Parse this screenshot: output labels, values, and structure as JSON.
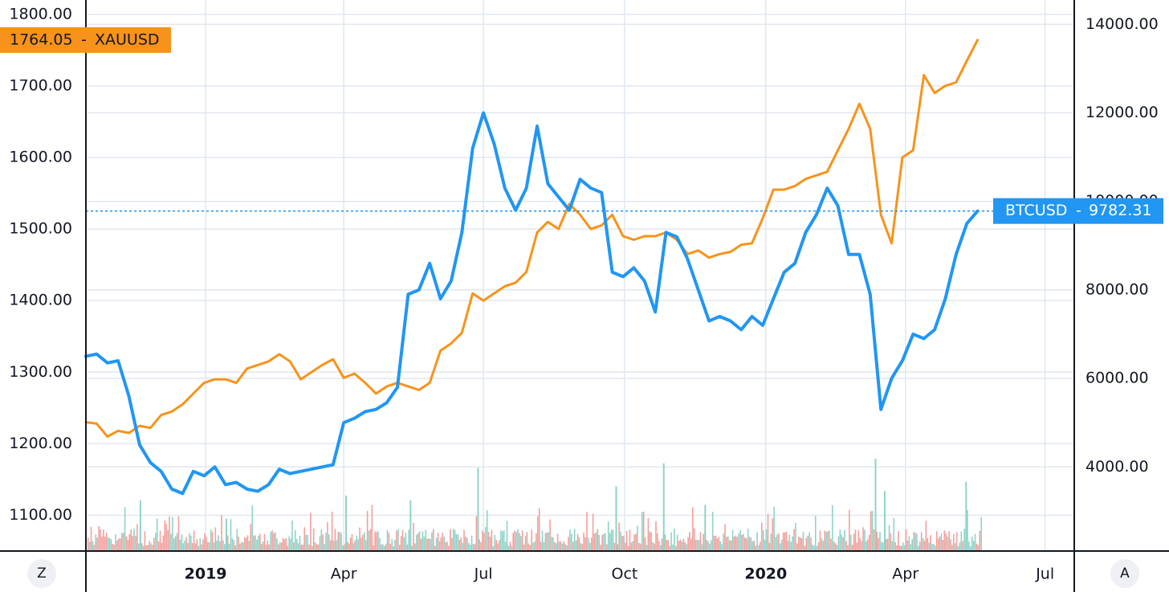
{
  "controls": {
    "left_button": "Z",
    "right_button": "A"
  },
  "colors": {
    "gold": "#f7931a",
    "btc": "#2196f3",
    "vol_up": "#8fd3c8",
    "vol_down": "#f3a09c",
    "grid": "#e1e7ef"
  },
  "chart_data": {
    "type": "line",
    "x_ticks": [
      {
        "label": "2019",
        "date": "2019-01-01",
        "bold": true
      },
      {
        "label": "Apr",
        "date": "2019-04-01",
        "bold": false
      },
      {
        "label": "Jul",
        "date": "2019-07-01",
        "bold": false
      },
      {
        "label": "Oct",
        "date": "2019-10-01",
        "bold": false
      },
      {
        "label": "2020",
        "date": "2020-01-01",
        "bold": true
      },
      {
        "label": "Apr",
        "date": "2020-04-01",
        "bold": false
      },
      {
        "label": "Jul",
        "date": "2020-07-01",
        "bold": false
      }
    ],
    "x_range": [
      "2018-10-15",
      "2020-07-20"
    ],
    "left_axis": {
      "range": [
        1050,
        1820
      ],
      "ticks": [
        "1100.00",
        "1200.00",
        "1300.00",
        "1400.00",
        "1500.00",
        "1600.00",
        "1700.00",
        "1800.00"
      ]
    },
    "right_axis": {
      "range": [
        2100,
        14550
      ],
      "ticks": [
        "4000.00",
        "6000.00",
        "8000.00",
        "10000.00",
        "12000.00",
        "14000.00"
      ]
    },
    "series": [
      {
        "name": "XAUUSD",
        "axis": "left",
        "color": "#f7931a",
        "last_label": "1764.05",
        "points": [
          [
            "2018-10-15",
            1230
          ],
          [
            "2018-10-22",
            1228
          ],
          [
            "2018-10-29",
            1210
          ],
          [
            "2018-11-05",
            1218
          ],
          [
            "2018-11-12",
            1215
          ],
          [
            "2018-11-19",
            1225
          ],
          [
            "2018-11-26",
            1222
          ],
          [
            "2018-12-03",
            1240
          ],
          [
            "2018-12-10",
            1245
          ],
          [
            "2018-12-17",
            1255
          ],
          [
            "2018-12-24",
            1270
          ],
          [
            "2018-12-31",
            1285
          ],
          [
            "2019-01-07",
            1290
          ],
          [
            "2019-01-14",
            1290
          ],
          [
            "2019-01-21",
            1285
          ],
          [
            "2019-01-28",
            1305
          ],
          [
            "2019-02-04",
            1310
          ],
          [
            "2019-02-11",
            1315
          ],
          [
            "2019-02-18",
            1325
          ],
          [
            "2019-02-25",
            1315
          ],
          [
            "2019-03-04",
            1290
          ],
          [
            "2019-03-11",
            1300
          ],
          [
            "2019-03-18",
            1310
          ],
          [
            "2019-03-25",
            1318
          ],
          [
            "2019-04-01",
            1292
          ],
          [
            "2019-04-08",
            1298
          ],
          [
            "2019-04-15",
            1285
          ],
          [
            "2019-04-22",
            1270
          ],
          [
            "2019-04-29",
            1280
          ],
          [
            "2019-05-06",
            1285
          ],
          [
            "2019-05-13",
            1280
          ],
          [
            "2019-05-20",
            1275
          ],
          [
            "2019-05-27",
            1285
          ],
          [
            "2019-06-03",
            1330
          ],
          [
            "2019-06-10",
            1340
          ],
          [
            "2019-06-17",
            1355
          ],
          [
            "2019-06-24",
            1410
          ],
          [
            "2019-07-01",
            1400
          ],
          [
            "2019-07-08",
            1410
          ],
          [
            "2019-07-15",
            1420
          ],
          [
            "2019-07-22",
            1425
          ],
          [
            "2019-07-29",
            1440
          ],
          [
            "2019-08-05",
            1495
          ],
          [
            "2019-08-12",
            1510
          ],
          [
            "2019-08-19",
            1500
          ],
          [
            "2019-08-26",
            1535
          ],
          [
            "2019-09-02",
            1520
          ],
          [
            "2019-09-09",
            1500
          ],
          [
            "2019-09-16",
            1505
          ],
          [
            "2019-09-23",
            1520
          ],
          [
            "2019-09-30",
            1490
          ],
          [
            "2019-10-07",
            1485
          ],
          [
            "2019-10-14",
            1490
          ],
          [
            "2019-10-21",
            1490
          ],
          [
            "2019-10-28",
            1495
          ],
          [
            "2019-11-04",
            1485
          ],
          [
            "2019-11-11",
            1465
          ],
          [
            "2019-11-18",
            1470
          ],
          [
            "2019-11-25",
            1460
          ],
          [
            "2019-12-02",
            1465
          ],
          [
            "2019-12-09",
            1468
          ],
          [
            "2019-12-16",
            1478
          ],
          [
            "2019-12-23",
            1480
          ],
          [
            "2019-12-30",
            1515
          ],
          [
            "2020-01-06",
            1555
          ],
          [
            "2020-01-13",
            1555
          ],
          [
            "2020-01-20",
            1560
          ],
          [
            "2020-01-27",
            1570
          ],
          [
            "2020-02-03",
            1575
          ],
          [
            "2020-02-10",
            1580
          ],
          [
            "2020-02-17",
            1610
          ],
          [
            "2020-02-24",
            1640
          ],
          [
            "2020-03-02",
            1675
          ],
          [
            "2020-03-09",
            1640
          ],
          [
            "2020-03-16",
            1520
          ],
          [
            "2020-03-23",
            1480
          ],
          [
            "2020-03-30",
            1600
          ],
          [
            "2020-04-06",
            1610
          ],
          [
            "2020-04-13",
            1715
          ],
          [
            "2020-04-20",
            1690
          ],
          [
            "2020-04-27",
            1700
          ],
          [
            "2020-05-04",
            1705
          ],
          [
            "2020-05-11",
            1735
          ],
          [
            "2020-05-18",
            1764.05
          ]
        ]
      },
      {
        "name": "BTCUSD",
        "axis": "right",
        "color": "#2196f3",
        "last_label": "9782.31",
        "points": [
          [
            "2018-10-15",
            6500
          ],
          [
            "2018-10-22",
            6550
          ],
          [
            "2018-10-29",
            6350
          ],
          [
            "2018-11-05",
            6400
          ],
          [
            "2018-11-12",
            5600
          ],
          [
            "2018-11-19",
            4500
          ],
          [
            "2018-11-26",
            4100
          ],
          [
            "2018-12-03",
            3900
          ],
          [
            "2018-12-10",
            3500
          ],
          [
            "2018-12-17",
            3400
          ],
          [
            "2018-12-24",
            3900
          ],
          [
            "2018-12-31",
            3800
          ],
          [
            "2019-01-07",
            4000
          ],
          [
            "2019-01-14",
            3600
          ],
          [
            "2019-01-21",
            3650
          ],
          [
            "2019-01-28",
            3500
          ],
          [
            "2019-02-04",
            3450
          ],
          [
            "2019-02-11",
            3600
          ],
          [
            "2019-02-18",
            3950
          ],
          [
            "2019-02-25",
            3850
          ],
          [
            "2019-03-04",
            3900
          ],
          [
            "2019-03-11",
            3950
          ],
          [
            "2019-03-18",
            4000
          ],
          [
            "2019-03-25",
            4050
          ],
          [
            "2019-04-01",
            5000
          ],
          [
            "2019-04-08",
            5100
          ],
          [
            "2019-04-15",
            5250
          ],
          [
            "2019-04-22",
            5300
          ],
          [
            "2019-04-29",
            5450
          ],
          [
            "2019-05-06",
            5800
          ],
          [
            "2019-05-13",
            7900
          ],
          [
            "2019-05-20",
            8000
          ],
          [
            "2019-05-27",
            8600
          ],
          [
            "2019-06-03",
            7800
          ],
          [
            "2019-06-10",
            8200
          ],
          [
            "2019-06-17",
            9300
          ],
          [
            "2019-06-24",
            11200
          ],
          [
            "2019-07-01",
            12000
          ],
          [
            "2019-07-08",
            11300
          ],
          [
            "2019-07-15",
            10300
          ],
          [
            "2019-07-22",
            9800
          ],
          [
            "2019-07-29",
            10300
          ],
          [
            "2019-08-05",
            11700
          ],
          [
            "2019-08-12",
            10400
          ],
          [
            "2019-08-19",
            10100
          ],
          [
            "2019-08-26",
            9800
          ],
          [
            "2019-09-02",
            10500
          ],
          [
            "2019-09-09",
            10300
          ],
          [
            "2019-09-16",
            10200
          ],
          [
            "2019-09-23",
            8400
          ],
          [
            "2019-09-30",
            8300
          ],
          [
            "2019-10-07",
            8500
          ],
          [
            "2019-10-14",
            8200
          ],
          [
            "2019-10-21",
            7500
          ],
          [
            "2019-10-28",
            9300
          ],
          [
            "2019-11-04",
            9200
          ],
          [
            "2019-11-11",
            8700
          ],
          [
            "2019-11-18",
            8000
          ],
          [
            "2019-11-25",
            7300
          ],
          [
            "2019-12-02",
            7400
          ],
          [
            "2019-12-09",
            7300
          ],
          [
            "2019-12-16",
            7100
          ],
          [
            "2019-12-23",
            7400
          ],
          [
            "2019-12-30",
            7200
          ],
          [
            "2020-01-06",
            7800
          ],
          [
            "2020-01-13",
            8400
          ],
          [
            "2020-01-20",
            8600
          ],
          [
            "2020-01-27",
            9300
          ],
          [
            "2020-02-03",
            9700
          ],
          [
            "2020-02-10",
            10300
          ],
          [
            "2020-02-17",
            9900
          ],
          [
            "2020-02-24",
            8800
          ],
          [
            "2020-03-02",
            8800
          ],
          [
            "2020-03-09",
            7900
          ],
          [
            "2020-03-16",
            5300
          ],
          [
            "2020-03-23",
            6000
          ],
          [
            "2020-03-30",
            6400
          ],
          [
            "2020-04-06",
            7000
          ],
          [
            "2020-04-13",
            6900
          ],
          [
            "2020-04-20",
            7100
          ],
          [
            "2020-04-27",
            7800
          ],
          [
            "2020-05-04",
            8800
          ],
          [
            "2020-05-11",
            9500
          ],
          [
            "2020-05-18",
            9782.31
          ]
        ]
      }
    ],
    "reference_line": {
      "series": "BTCUSD",
      "value": 9782.31
    },
    "volume_spikes": [
      {
        "date": "2018-11-19",
        "height": 0.55
      },
      {
        "date": "2019-01-14",
        "height": 0.35
      },
      {
        "date": "2019-04-02",
        "height": 0.6
      },
      {
        "date": "2019-05-14",
        "height": 0.55
      },
      {
        "date": "2019-06-27",
        "height": 0.9
      },
      {
        "date": "2019-09-25",
        "height": 0.7
      },
      {
        "date": "2019-10-26",
        "height": 0.95
      },
      {
        "date": "2019-11-22",
        "height": 0.5
      },
      {
        "date": "2020-03-12",
        "height": 1.0
      },
      {
        "date": "2020-03-18",
        "height": 0.65
      },
      {
        "date": "2020-05-10",
        "height": 0.75
      }
    ]
  }
}
